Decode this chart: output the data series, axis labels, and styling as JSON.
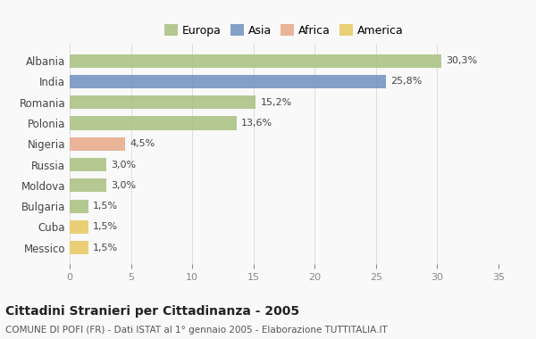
{
  "countries": [
    "Albania",
    "India",
    "Romania",
    "Polonia",
    "Nigeria",
    "Russia",
    "Moldova",
    "Bulgaria",
    "Cuba",
    "Messico"
  ],
  "values": [
    30.3,
    25.8,
    15.2,
    13.6,
    4.5,
    3.0,
    3.0,
    1.5,
    1.5,
    1.5
  ],
  "labels": [
    "30,3%",
    "25,8%",
    "15,2%",
    "13,6%",
    "4,5%",
    "3,0%",
    "3,0%",
    "1,5%",
    "1,5%",
    "1,5%"
  ],
  "colors": [
    "#a8c080",
    "#7090c0",
    "#a8c080",
    "#a8c080",
    "#e8a888",
    "#a8c080",
    "#a8c080",
    "#a8c080",
    "#e8c860",
    "#e8c860"
  ],
  "legend": [
    {
      "label": "Europa",
      "color": "#a8c080"
    },
    {
      "label": "Asia",
      "color": "#7090c0"
    },
    {
      "label": "Africa",
      "color": "#e8a888"
    },
    {
      "label": "America",
      "color": "#e8c860"
    }
  ],
  "xlim": [
    0,
    35
  ],
  "xticks": [
    0,
    5,
    10,
    15,
    20,
    25,
    30,
    35
  ],
  "title": "Cittadini Stranieri per Cittadinanza - 2005",
  "subtitle": "COMUNE DI POFI (FR) - Dati ISTAT al 1° gennaio 2005 - Elaborazione TUTTITALIA.IT",
  "background_color": "#f9f9f9",
  "bar_alpha": 0.85
}
